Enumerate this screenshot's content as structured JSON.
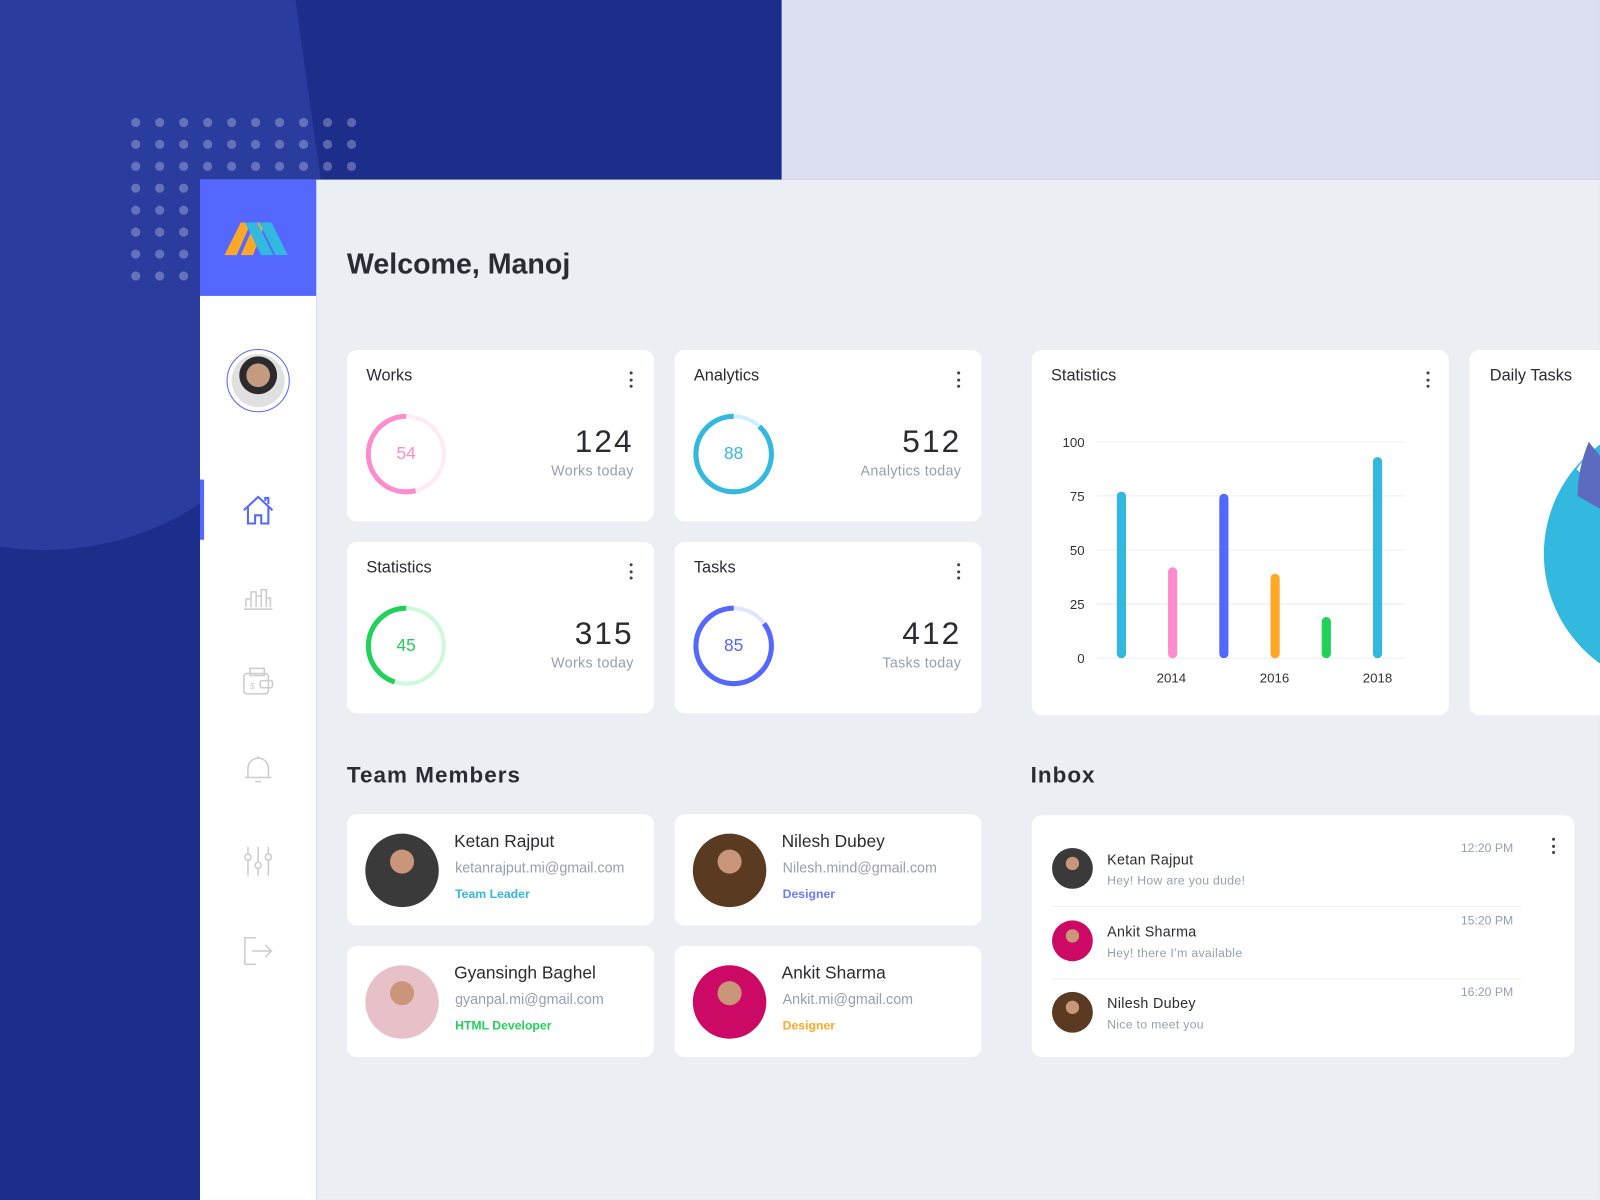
{
  "brand": {
    "logo_text": "M",
    "accent": "#5468ff"
  },
  "header": {
    "welcome": "Welcome, Manoj"
  },
  "sidebar": {
    "items": [
      {
        "name": "home",
        "icon": "home-icon",
        "active": true
      },
      {
        "name": "statistics",
        "icon": "bar-chart-icon",
        "active": false
      },
      {
        "name": "wallet",
        "icon": "wallet-icon",
        "active": false
      },
      {
        "name": "notifications",
        "icon": "bell-icon",
        "active": false
      },
      {
        "name": "settings",
        "icon": "sliders-icon",
        "active": false
      },
      {
        "name": "logout",
        "icon": "logout-icon",
        "active": false
      }
    ]
  },
  "stat_cards": [
    {
      "title": "Works",
      "percent": 54,
      "value": "124",
      "caption": "Works today",
      "color": "#ff8ccc",
      "track": "#ffeaf5"
    },
    {
      "title": "Analytics",
      "percent": 88,
      "value": "512",
      "caption": "Analytics today",
      "color": "#33b8e0",
      "track": "#c9f0fb"
    },
    {
      "title": "Statistics",
      "percent": 45,
      "value": "315",
      "caption": "Works today",
      "color": "#22d15a",
      "track": "#cdfadb"
    },
    {
      "title": "Tasks",
      "percent": 85,
      "value": "412",
      "caption": "Tasks today",
      "color": "#5468ff",
      "track": "#dfe5ff"
    }
  ],
  "chart_data": {
    "type": "bar",
    "title": "Statistics",
    "values": [
      77,
      42,
      76,
      39,
      19,
      93
    ],
    "colors": [
      "#33b8e0",
      "#ff8ccc",
      "#5468ff",
      "#ffa726",
      "#22d15a",
      "#33b8e0"
    ],
    "x_tick_labels": [
      "2014",
      "2016",
      "2018"
    ],
    "y_ticks": [
      "0",
      "25",
      "50",
      "75",
      "100"
    ],
    "ylim": [
      0,
      100
    ],
    "grid": true
  },
  "daily_tasks": {
    "title": "Daily Tasks",
    "colors": [
      "#33b8e0",
      "#5c6bc0"
    ]
  },
  "team": {
    "heading": "Team Members",
    "members": [
      {
        "name": "Ketan Rajput",
        "email": "ketanrajput.mi@gmail.com",
        "role": "Team Leader",
        "role_color": "#33b8e0",
        "avatar_color": "#3a3a3a"
      },
      {
        "name": "Nilesh Dubey",
        "email": "Nilesh.mind@gmail.com",
        "role": "Designer",
        "role_color": "#6a7bff",
        "avatar_color": "#5a3a20"
      },
      {
        "name": "Gyansingh Baghel",
        "email": "gyanpal.mi@gmail.com",
        "role": "HTML Developer",
        "role_color": "#22d15a",
        "avatar_color": "#e8c0c8"
      },
      {
        "name": "Ankit Sharma",
        "email": "Ankit.mi@gmail.com",
        "role": "Designer",
        "role_color": "#ffa726",
        "avatar_color": "#cc0a66"
      }
    ]
  },
  "inbox": {
    "heading": "Inbox",
    "messages": [
      {
        "name": "Ketan Rajput",
        "message": "Hey! How are you dude!",
        "time": "12:20 PM",
        "avatar_color": "#3a3a3a"
      },
      {
        "name": "Ankit Sharma",
        "message": "Hey! there I’m available",
        "time": "15:20 PM",
        "avatar_color": "#cc0a66"
      },
      {
        "name": "Nilesh Dubey",
        "message": "Nice to meet you",
        "time": "16:20 PM",
        "avatar_color": "#5a3a20"
      }
    ]
  }
}
